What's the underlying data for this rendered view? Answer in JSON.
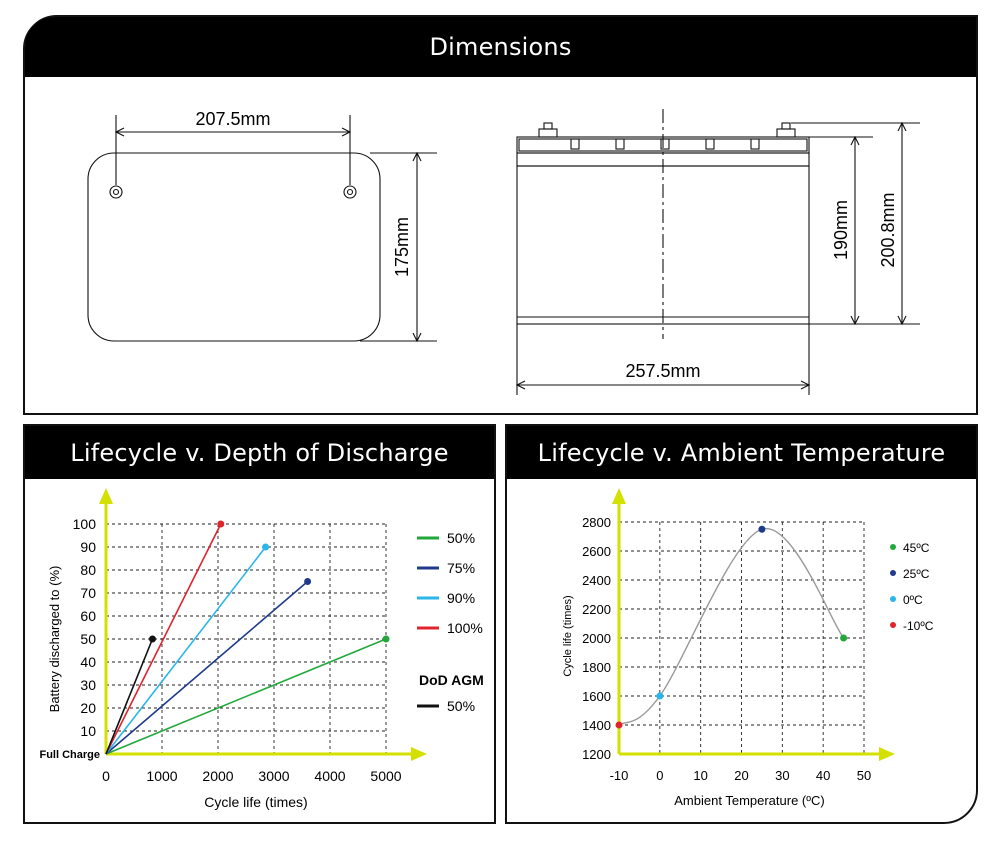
{
  "panels": {
    "dimensions": {
      "title": "Dimensions",
      "top_view": {
        "width_label": "207.5mm",
        "height_label": "175mm"
      },
      "side_view": {
        "length_label": "257.5mm",
        "height_label": "190mm",
        "total_height_label": "200.8mm"
      }
    },
    "dod": {
      "title": "Lifecycle v. Depth of Discharge"
    },
    "temp": {
      "title": "Lifecycle v. Ambient Temperature"
    }
  },
  "colors": {
    "green": "#22a83a",
    "navy": "#1f3a8a",
    "cyan": "#29b6e8",
    "red": "#e0242b",
    "black": "#111111",
    "axis_arrow": "#d4e000",
    "curve": "#999999"
  },
  "chart_data": [
    {
      "type": "line",
      "xlabel": "Cycle life (times)",
      "ylabel": "Battery discharged to (%)",
      "xlim": [
        0,
        5000
      ],
      "ylim": [
        0,
        100
      ],
      "x_ticks": [
        0,
        1000,
        2000,
        3000,
        4000,
        5000
      ],
      "y_ticks": [
        "Full Charge",
        "10",
        "20",
        "30",
        "40",
        "50",
        "60",
        "70",
        "80",
        "90",
        "100"
      ],
      "grid": true,
      "legend_position": "right",
      "legend_subtitle": "DoD AGM",
      "series": [
        {
          "name": "50%",
          "color": "#22a83a",
          "points": [
            [
              0,
              0
            ],
            [
              5000,
              50
            ]
          ]
        },
        {
          "name": "75%",
          "color": "#1f3a8a",
          "points": [
            [
              0,
              0
            ],
            [
              3600,
              75
            ]
          ]
        },
        {
          "name": "90%",
          "color": "#29b6e8",
          "points": [
            [
              0,
              0
            ],
            [
              2850,
              90
            ]
          ]
        },
        {
          "name": "100%",
          "color": "#e0242b",
          "points": [
            [
              0,
              0
            ],
            [
              2050,
              100
            ]
          ]
        },
        {
          "name": "50%",
          "color": "#111111",
          "group": "DoD AGM",
          "points": [
            [
              0,
              0
            ],
            [
              830,
              50
            ]
          ]
        }
      ]
    },
    {
      "type": "line",
      "xlabel": "Ambient Temperature (ºC)",
      "ylabel": "Cycle life (times)",
      "xlim": [
        -10,
        50
      ],
      "ylim": [
        1200,
        2800
      ],
      "x_ticks": [
        -10,
        0,
        10,
        20,
        30,
        40,
        50
      ],
      "y_ticks": [
        1200,
        1400,
        1600,
        1800,
        2000,
        2200,
        2400,
        2600,
        2800
      ],
      "grid": true,
      "legend_position": "right",
      "curve_points": [
        [
          -10,
          1400
        ],
        [
          0,
          1600
        ],
        [
          25,
          2750
        ],
        [
          45,
          2000
        ]
      ],
      "points": [
        {
          "label": "45ºC",
          "x": 45,
          "y": 2000,
          "color": "#22a83a"
        },
        {
          "label": "25ºC",
          "x": 25,
          "y": 2750,
          "color": "#1f3a8a"
        },
        {
          "label": "0ºC",
          "x": 0,
          "y": 1600,
          "color": "#29b6e8"
        },
        {
          "label": "-10ºC",
          "x": -10,
          "y": 1400,
          "color": "#e0242b"
        }
      ]
    }
  ]
}
